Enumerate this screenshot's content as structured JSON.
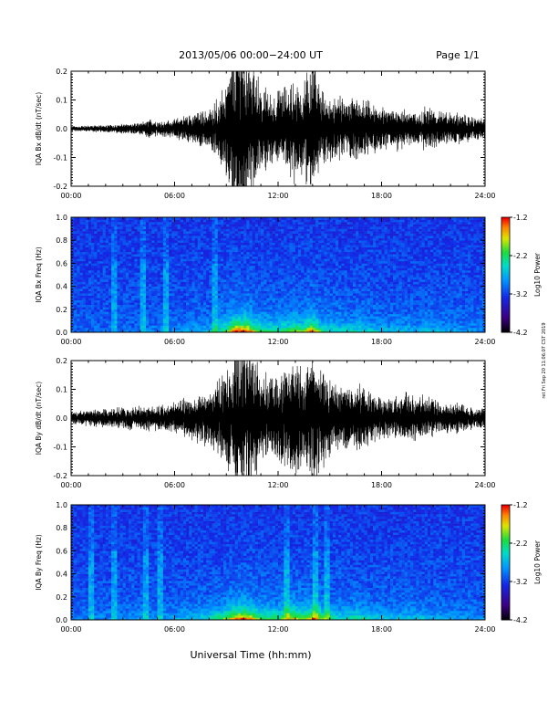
{
  "header": {
    "title": "2013/05/06  00:00−24:00 UT",
    "page": "Page 1/1"
  },
  "footer": {
    "xlabel": "Universal Time (hh:mm)",
    "side_stamp": "ret Fri Sep 20 11:06:07 CST 2019"
  },
  "chart_data": [
    {
      "type": "line",
      "ylabel": "IQA Bx dB/dt (nT/sec)",
      "xlim": [
        "00:00",
        "24:00"
      ],
      "ylim": [
        -0.2,
        0.2
      ],
      "x_ticks": [
        "00:00",
        "06:00",
        "12:00",
        "18:00",
        "24:00"
      ],
      "y_ticks": [
        "-0.2",
        "-0.1",
        "0.0",
        "0.1",
        "0.2"
      ],
      "envelope": {
        "x_hours": [
          0,
          1,
          2,
          3,
          4,
          4.5,
          5,
          6,
          7,
          8,
          8.5,
          9,
          9.5,
          10,
          10.5,
          11,
          11.5,
          12,
          12.5,
          13,
          13.5,
          14,
          14.5,
          15,
          15.5,
          16,
          16.5,
          17,
          17.5,
          18,
          18.5,
          19,
          19.5,
          20,
          20.5,
          21,
          21.5,
          22,
          22.5,
          23,
          24
        ],
        "amplitude": [
          0.008,
          0.01,
          0.012,
          0.015,
          0.018,
          0.03,
          0.025,
          0.03,
          0.05,
          0.06,
          0.1,
          0.15,
          0.25,
          0.3,
          0.2,
          0.14,
          0.12,
          0.12,
          0.14,
          0.17,
          0.14,
          0.25,
          0.12,
          0.1,
          0.1,
          0.09,
          0.1,
          0.09,
          0.08,
          0.07,
          0.06,
          0.07,
          0.06,
          0.05,
          0.07,
          0.07,
          0.06,
          0.05,
          0.05,
          0.04,
          0.03
        ]
      }
    },
    {
      "type": "heatmap",
      "ylabel": "IQA Bx Freq (Hz)",
      "xlim": [
        "00:00",
        "24:00"
      ],
      "ylim": [
        0.0,
        1.0
      ],
      "x_ticks": [
        "00:00",
        "06:00",
        "12:00",
        "18:00",
        "24:00"
      ],
      "y_ticks": [
        "0.0",
        "0.2",
        "0.4",
        "0.6",
        "0.8",
        "1.0"
      ],
      "colorbar": {
        "label": "Log10 Power",
        "range": [
          -4.2,
          -1.2
        ],
        "ticks": [
          "-1.2",
          "-2.2",
          "-3.2",
          "-4.2"
        ]
      }
    },
    {
      "type": "line",
      "ylabel": "IQA By dB/dt (nT/sec)",
      "xlim": [
        "00:00",
        "24:00"
      ],
      "ylim": [
        -0.2,
        0.2
      ],
      "x_ticks": [
        "00:00",
        "06:00",
        "12:00",
        "18:00",
        "24:00"
      ],
      "y_ticks": [
        "-0.2",
        "-0.1",
        "0.0",
        "0.1",
        "0.2"
      ],
      "envelope": {
        "x_hours": [
          0,
          1,
          2,
          3,
          4,
          4.5,
          5,
          6,
          7,
          8,
          8.5,
          9,
          9.5,
          10,
          10.5,
          11,
          11.5,
          12,
          12.5,
          13,
          13.5,
          14,
          14.5,
          15,
          15.5,
          16,
          16.5,
          17,
          17.5,
          18,
          18.5,
          19,
          19.5,
          20,
          20.5,
          21,
          21.5,
          22,
          22.5,
          23,
          24
        ],
        "amplitude": [
          0.02,
          0.025,
          0.03,
          0.035,
          0.04,
          0.04,
          0.04,
          0.05,
          0.07,
          0.09,
          0.12,
          0.16,
          0.22,
          0.25,
          0.2,
          0.15,
          0.13,
          0.13,
          0.16,
          0.2,
          0.15,
          0.2,
          0.16,
          0.12,
          0.1,
          0.1,
          0.11,
          0.1,
          0.08,
          0.07,
          0.06,
          0.07,
          0.08,
          0.07,
          0.07,
          0.06,
          0.05,
          0.05,
          0.05,
          0.04,
          0.03
        ]
      }
    },
    {
      "type": "heatmap",
      "ylabel": "IQA By Freq (Hz)",
      "xlim": [
        "00:00",
        "24:00"
      ],
      "ylim": [
        0.0,
        1.0
      ],
      "x_ticks": [
        "00:00",
        "06:00",
        "12:00",
        "18:00",
        "24:00"
      ],
      "y_ticks": [
        "0.0",
        "0.2",
        "0.4",
        "0.6",
        "0.8",
        "1.0"
      ],
      "colorbar": {
        "label": "Log10 Power",
        "range": [
          -4.2,
          -1.2
        ],
        "ticks": [
          "-1.2",
          "-2.2",
          "-3.2",
          "-4.2"
        ]
      }
    }
  ]
}
